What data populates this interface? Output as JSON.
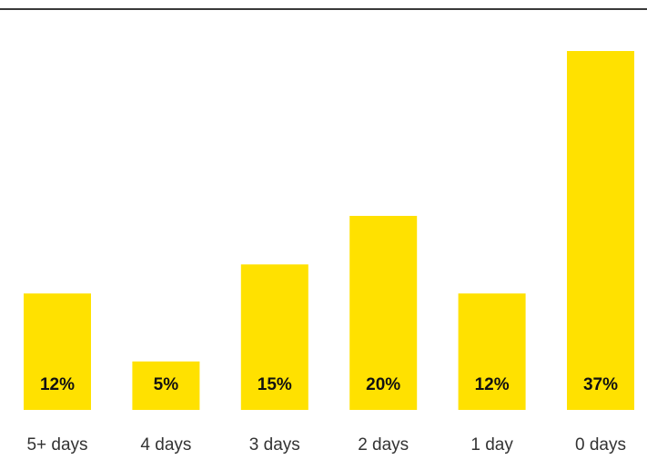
{
  "chart_data": {
    "type": "bar",
    "categories": [
      "5+ days",
      "4 days",
      "3 days",
      "2 days",
      "1 day",
      "0 days"
    ],
    "values": [
      12,
      5,
      15,
      20,
      12,
      37
    ],
    "value_labels": [
      "12%",
      "5%",
      "15%",
      "20%",
      "12%",
      "37%"
    ],
    "unit": "%",
    "ylim": [
      0,
      37
    ],
    "grid": false,
    "legend": "none",
    "bar_color": "#FFE100"
  }
}
